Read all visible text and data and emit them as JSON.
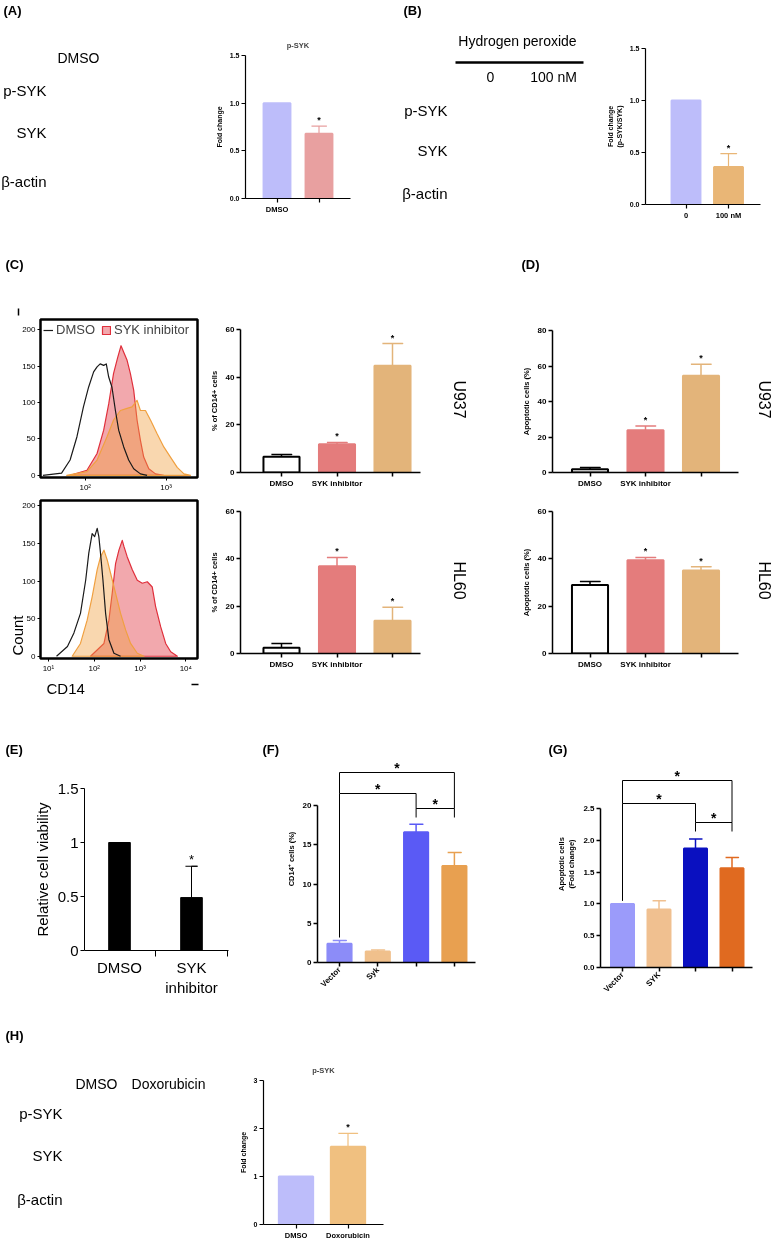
{
  "chart_data": [
    {
      "type": "other",
      "annotations": [
        "(A)",
        "DMSO",
        "p-SYK",
        "SYK",
        "β-actin"
      ]
    },
    {
      "type": "bar",
      "title": "p-SYK",
      "ylabel": "Fold change",
      "categories": [
        "DMSO",
        null
      ],
      "values": [
        1.0,
        0.68
      ],
      "colors": [
        "#bdbdfa",
        "#e8a0a0"
      ],
      "errors": [
        null,
        [
          0.68,
          0.76
        ]
      ],
      "value_labels": [
        null,
        "*"
      ],
      "ylim": [
        0,
        1.5
      ],
      "yticks": [
        {
          "value": 0,
          "label": "0.0"
        },
        0.5,
        {
          "value": 1,
          "label": "1.0"
        },
        1.5
      ]
    },
    {
      "type": "other",
      "annotations": [
        "(B)",
        "Hydrogen peroxide",
        "0",
        "100 nM",
        "p-SYK",
        "SYK",
        "β-actin"
      ]
    },
    {
      "type": "bar",
      "ylabel": "Fold change\n(p-SYK/SYK)",
      "categories": [
        "0",
        "100 nM"
      ],
      "values": [
        1.0,
        0.36
      ],
      "colors": [
        "#bdbdfa",
        "#e9b676"
      ],
      "errors": [
        null,
        [
          0.36,
          0.49
        ]
      ],
      "value_labels": [
        null,
        "*"
      ],
      "ylim": [
        0,
        1.5
      ],
      "yticks": [
        {
          "value": 0,
          "label": "0.0"
        },
        0.5,
        {
          "value": 1,
          "label": "1.0"
        },
        1.5
      ]
    },
    {
      "type": "area",
      "annotations": [
        "(C)"
      ],
      "log": "x",
      "xlim": [
        28,
        2440
      ],
      "ylim": [
        -3,
        214
      ],
      "xticks": [
        {
          "value": 100,
          "label": "10²"
        },
        {
          "value": 1000,
          "label": "10³"
        }
      ],
      "yticks": [
        0,
        50,
        100,
        150,
        200
      ],
      "legend": "top left",
      "series": [
        {
          "name": "DMSO",
          "type": "line",
          "color": "#1a1a1a",
          "x": [
            30,
            51,
            65,
            79,
            95,
            110,
            127,
            140,
            153,
            169,
            182,
            195,
            214,
            236,
            259,
            299,
            344,
            397,
            481,
            581
          ],
          "values": [
            0,
            3,
            21,
            53,
            94,
            121,
            142,
            149,
            153,
            151,
            153,
            135,
            121,
            89,
            62,
            39,
            21,
            9,
            2,
            0
          ]
        },
        {
          "name": "SYK inhibitor",
          "color": "#e0303c",
          "x": [
            65,
            105,
            140,
            169,
            195,
            224,
            252,
            277,
            299,
            329,
            361,
            397,
            437,
            481,
            528,
            610,
            738,
            935
          ],
          "values": [
            0,
            7,
            30,
            62,
            98,
            140,
            162,
            178,
            169,
            158,
            140,
            117,
            76,
            48,
            25,
            9,
            2,
            0
          ]
        },
        {
          "color": "#f0a040",
          "x": [
            59,
            105,
            140,
            186,
            224,
            272,
            329,
            379,
            437,
            481,
            555,
            640,
            773,
            935,
            1130,
            1370,
            1660,
            2000
          ],
          "values": [
            0,
            5,
            21,
            53,
            76,
            89,
            92,
            94,
            103,
            89,
            89,
            76,
            57,
            39,
            25,
            11,
            2,
            0
          ]
        }
      ]
    },
    {
      "type": "area",
      "xlabel": "CD14",
      "ylabel": "Count",
      "log": "x",
      "xlim": [
        6.7,
        18000
      ],
      "ylim": [
        -3,
        207
      ],
      "xticks": [
        {
          "value": 10,
          "label": "10¹"
        },
        {
          "value": 100,
          "label": "10²"
        },
        {
          "value": 1000,
          "label": "10³"
        },
        {
          "value": 10000,
          "label": "10⁴"
        }
      ],
      "yticks": [
        0,
        50,
        100,
        150,
        200
      ],
      "series": [
        {
          "type": "line",
          "color": "#1a1a1a",
          "x": [
            15,
            26,
            36,
            50,
            65,
            76,
            90,
            102,
            116,
            126,
            137,
            155,
            177,
            209,
            269,
            376
          ],
          "values": [
            0,
            13,
            31,
            57,
            101,
            137,
            163,
            159,
            170,
            159,
            137,
            101,
            57,
            22,
            4,
            0
          ]
        },
        {
          "color": "#e0303c",
          "x": [
            83,
            163,
            209,
            247,
            292,
            346,
            409,
            445,
            526,
            678,
            871,
            1120,
            1440,
            1850,
            2190,
            2830,
            3630,
            4680,
            6550
          ],
          "values": [
            0,
            17,
            48,
            84,
            123,
            141,
            154,
            146,
            132,
            115,
            101,
            97,
            99,
            92,
            66,
            39,
            17,
            6,
            0
          ]
        },
        {
          "color": "#f0a040",
          "x": [
            33,
            50,
            70,
            90,
            116,
            137,
            163,
            192,
            228,
            292,
            376,
            484,
            622,
            871,
            1220
          ],
          "values": [
            0,
            17,
            48,
            79,
            115,
            132,
            141,
            128,
            110,
            84,
            57,
            35,
            17,
            4,
            0
          ]
        }
      ]
    },
    {
      "type": "bar",
      "ylabel": "% of CD14+ cells",
      "categories": [
        "DMSO",
        "SYK inhibitor",
        null
      ],
      "values": [
        6.6,
        11.9,
        44.8
      ],
      "colors": [
        "#ffffff",
        "#e47c7c",
        "#e3b47a"
      ],
      "errors": [
        [
          6.6,
          7.6
        ],
        [
          11.9,
          12.6
        ],
        [
          44.8,
          54.1
        ]
      ],
      "value_labels": [
        null,
        "*",
        "*"
      ],
      "ylim": [
        0,
        60
      ],
      "yticks": [
        0,
        20,
        40,
        60
      ],
      "annotations": [
        "U937"
      ]
    },
    {
      "type": "bar",
      "ylabel": "% of CD14+ cells",
      "categories": [
        "DMSO",
        "SYK inhibitor",
        null
      ],
      "values": [
        2.4,
        36.9,
        13.8
      ],
      "colors": [
        "#ffffff",
        "#e47c7c",
        "#e3b47a"
      ],
      "errors": [
        [
          2.4,
          4.2
        ],
        [
          36.9,
          40.6
        ],
        [
          13.8,
          19.5
        ]
      ],
      "value_labels": [
        null,
        "*",
        "*"
      ],
      "ylim": [
        0,
        60
      ],
      "yticks": [
        0,
        20,
        40,
        60
      ],
      "annotations": [
        "HL60"
      ]
    },
    {
      "type": "bar",
      "ylabel": "Apoptotic cells (%)",
      "categories": [
        "DMSO",
        "SYK inhibitor",
        null
      ],
      "values": [
        1.9,
        23.8,
        54.5
      ],
      "colors": [
        "#ffffff",
        "#e47c7c",
        "#e3b47a"
      ],
      "errors": [
        [
          1.9,
          2.8
        ],
        [
          23.8,
          26.2
        ],
        [
          54.5,
          61.0
        ]
      ],
      "value_labels": [
        null,
        "*",
        "*"
      ],
      "ylim": [
        0,
        80
      ],
      "yticks": [
        0,
        20,
        40,
        60,
        80
      ],
      "annotations": [
        "(D)",
        "U937"
      ]
    },
    {
      "type": "bar",
      "ylabel": "Apoptotic cells (%)",
      "categories": [
        "DMSO",
        "SYK inhibitor",
        null
      ],
      "values": [
        28.9,
        39.4,
        35.1
      ],
      "colors": [
        "#ffffff",
        "#e47c7c",
        "#e3b47a"
      ],
      "errors": [
        [
          28.9,
          30.4
        ],
        [
          39.4,
          40.6
        ],
        [
          35.1,
          36.7
        ]
      ],
      "value_labels": [
        null,
        "*",
        "*"
      ],
      "ylim": [
        0,
        60
      ],
      "yticks": [
        0,
        20,
        40,
        60
      ],
      "annotations": [
        "HL60"
      ]
    },
    {
      "type": "bar",
      "annotations": [
        "(E)"
      ],
      "ylabel": "Relative cell viability",
      "categories": [
        "DMSO",
        "SYK\ninhibitor"
      ],
      "values": [
        1.0,
        0.49
      ],
      "color": "#000000",
      "errors": [
        null,
        [
          0.49,
          0.78
        ]
      ],
      "value_labels": [
        null,
        "*"
      ],
      "ylim": [
        0,
        1.5
      ],
      "yticks": [
        0,
        0.5,
        1,
        1.5
      ]
    },
    {
      "type": "bar",
      "annotations": [
        "(F)",
        "*",
        "*",
        "*"
      ],
      "ylabel": "CD14⁺ cells (%)",
      "categories": [
        "Vector",
        "Syk",
        null,
        null
      ],
      "values": [
        2.4,
        1.4,
        16.6,
        12.3
      ],
      "colors": [
        "#8c8cf8",
        "#f0c08c",
        "#5a5af5",
        "#e8a050"
      ],
      "errors": [
        [
          2.4,
          2.8
        ],
        [
          1.4,
          1.6
        ],
        [
          16.6,
          17.6
        ],
        [
          12.3,
          14.0
        ]
      ],
      "ylim": [
        0,
        20
      ],
      "yticks": [
        0,
        5,
        10,
        15,
        20
      ]
    },
    {
      "type": "bar",
      "annotations": [
        "(G)",
        "*",
        "*",
        "*"
      ],
      "ylabel": "Apoptotic cells\n(Fold change)",
      "categories": [
        "Vector",
        "SYK",
        null,
        null
      ],
      "values": [
        1.0,
        0.91,
        1.87,
        1.56
      ],
      "colors": [
        "#9b9bfa",
        "#f0c090",
        "#0a10c0",
        "#e06a20"
      ],
      "errors": [
        null,
        [
          0.91,
          1.05
        ],
        [
          1.87,
          2.02
        ],
        [
          1.56,
          1.73
        ]
      ],
      "ylim": [
        0,
        2.5
      ],
      "yticks": [
        {
          "value": 0,
          "label": "0.0"
        },
        0.5,
        {
          "value": 1,
          "label": "1.0"
        },
        1.5,
        {
          "value": 2,
          "label": "2.0"
        },
        2.5
      ]
    },
    {
      "type": "other",
      "annotations": [
        "(H)",
        "DMSO",
        "Doxorubicin",
        "p-SYK",
        "SYK",
        "β-actin"
      ]
    },
    {
      "type": "bar",
      "title": "p-SYK",
      "ylabel": "Fold change",
      "categories": [
        "DMSO",
        "Doxorubicin"
      ],
      "values": [
        1.0,
        1.62
      ],
      "colors": [
        "#bdbdfa",
        "#f0c080"
      ],
      "errors": [
        null,
        [
          1.62,
          1.9
        ]
      ],
      "value_labels": [
        null,
        "*"
      ],
      "ylim": [
        0,
        3
      ],
      "yticks": [
        0,
        1,
        2,
        3
      ]
    }
  ]
}
